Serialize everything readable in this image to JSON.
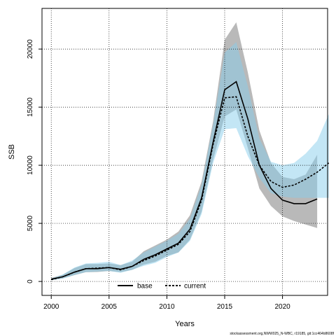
{
  "chart_data": {
    "type": "line",
    "title": "",
    "xlabel": "Years",
    "ylabel": "SSB",
    "xlim": [
      1999.2,
      2023.9
    ],
    "ylim": [
      -1200,
      23500
    ],
    "x_ticks": [
      2000,
      2005,
      2010,
      2015,
      2020
    ],
    "y_ticks": [
      0,
      5000,
      10000,
      15000,
      20000
    ],
    "grid": true,
    "legend": {
      "position": "bottom-center",
      "entries": [
        "base",
        "current"
      ]
    },
    "colors": {
      "base_line": "#000000",
      "base_band": "#808080",
      "current_line": "#000000",
      "current_band": "#87ceeb"
    },
    "series": [
      {
        "name": "base",
        "line_style": "solid",
        "x": [
          2000,
          2001,
          2002,
          2003,
          2004,
          2005,
          2006,
          2007,
          2008,
          2009,
          2010,
          2011,
          2012,
          2013,
          2014,
          2015,
          2016,
          2017,
          2018,
          2019,
          2020,
          2021,
          2022,
          2023
        ],
        "values": [
          200,
          400,
          800,
          1100,
          1100,
          1200,
          1050,
          1300,
          1900,
          2300,
          2800,
          3300,
          4500,
          7200,
          12000,
          16500,
          17200,
          14000,
          10000,
          8000,
          7000,
          6700,
          6700,
          7100
        ],
        "lower": [
          120,
          260,
          550,
          800,
          820,
          900,
          800,
          1000,
          1450,
          1700,
          2200,
          2500,
          3600,
          6000,
          10500,
          14200,
          14800,
          11500,
          8000,
          6500,
          5600,
          5200,
          4900,
          4600
        ],
        "upper": [
          300,
          580,
          1150,
          1500,
          1500,
          1550,
          1400,
          1700,
          2600,
          3100,
          3600,
          4300,
          5700,
          8600,
          13800,
          20800,
          22300,
          18000,
          13000,
          10200,
          9000,
          8800,
          9200,
          10900
        ]
      },
      {
        "name": "current",
        "line_style": "dashed",
        "x": [
          2000,
          2001,
          2002,
          2003,
          2004,
          2005,
          2006,
          2007,
          2008,
          2009,
          2010,
          2011,
          2012,
          2013,
          2014,
          2015,
          2016,
          2017,
          2018,
          2019,
          2020,
          2021,
          2022,
          2023,
          2024
        ],
        "values": [
          150,
          400,
          800,
          1100,
          1150,
          1200,
          1000,
          1300,
          1800,
          2200,
          2700,
          3200,
          4300,
          7000,
          11800,
          15800,
          15900,
          12500,
          10000,
          8600,
          8100,
          8300,
          8800,
          9400,
          10200
        ],
        "lower": [
          100,
          250,
          550,
          800,
          850,
          900,
          750,
          1000,
          1350,
          1600,
          2100,
          2500,
          3500,
          5800,
          10200,
          13100,
          13200,
          10800,
          8900,
          7600,
          7300,
          7200,
          7200,
          7200,
          7200
        ],
        "upper": [
          250,
          600,
          1200,
          1550,
          1600,
          1700,
          1400,
          1800,
          2500,
          3000,
          3500,
          4100,
          5400,
          8300,
          13500,
          19700,
          20600,
          16800,
          12300,
          10300,
          10000,
          10200,
          11000,
          12100,
          14400
        ]
      }
    ]
  },
  "footer": "stockassessment.org,NWW025_N-WBC, r19185, git:1cc464b8608f"
}
